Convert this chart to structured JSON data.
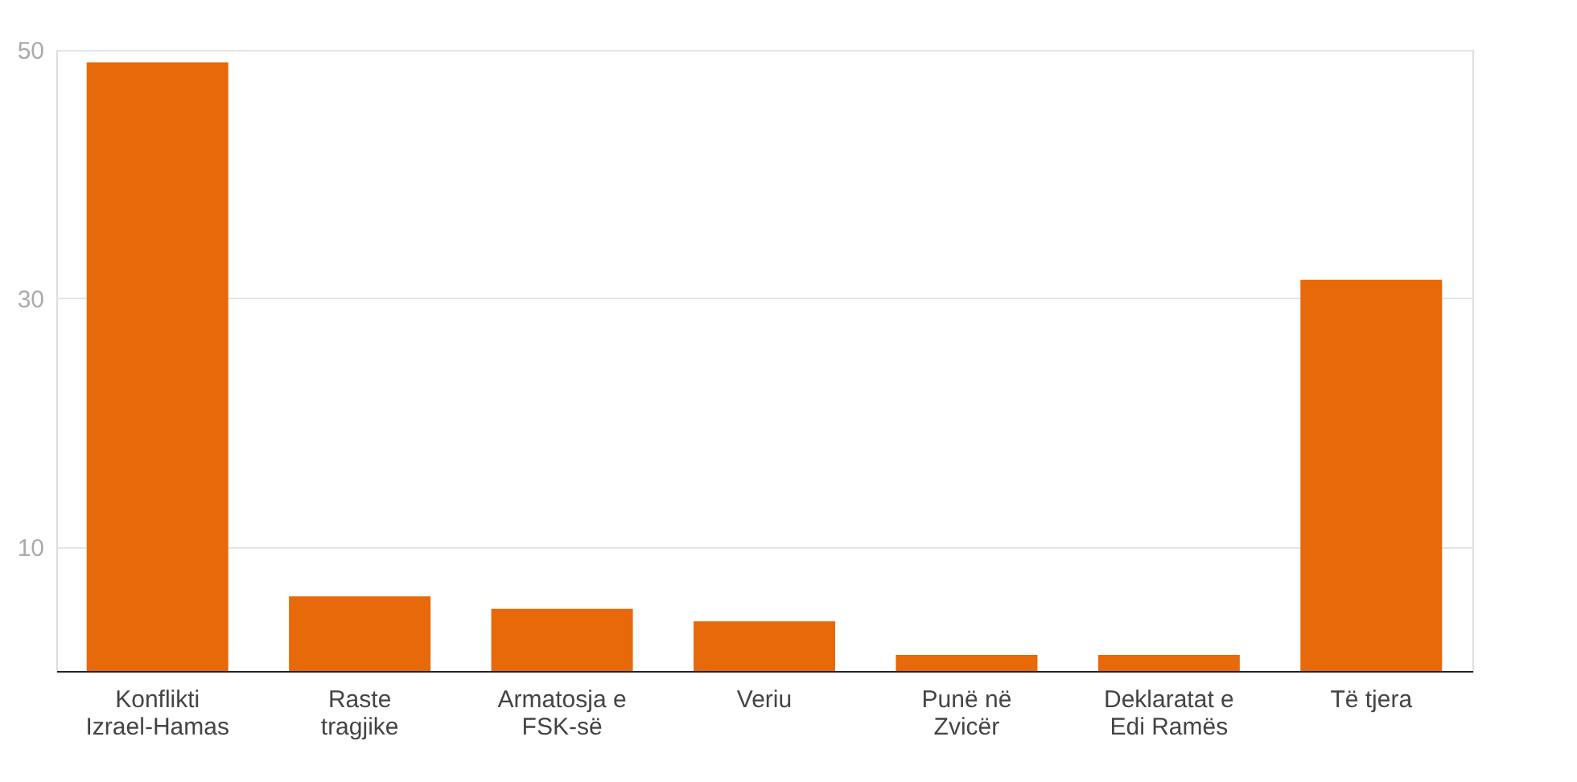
{
  "chart_data": {
    "type": "bar",
    "categories": [
      "Konflikti Izrael-Hamas",
      "Raste tragjike",
      "Armatosja e FSK-së",
      "Veriu",
      "Punë në Zvicër",
      "Deklaratat e Edi Ramës",
      "Të tjera"
    ],
    "values": [
      49,
      6,
      5,
      4,
      1.3,
      1.3,
      31.5
    ],
    "color": "#e8690a",
    "ylim": [
      0,
      50
    ],
    "yticks": [
      10,
      30,
      50
    ],
    "grid": "y"
  }
}
